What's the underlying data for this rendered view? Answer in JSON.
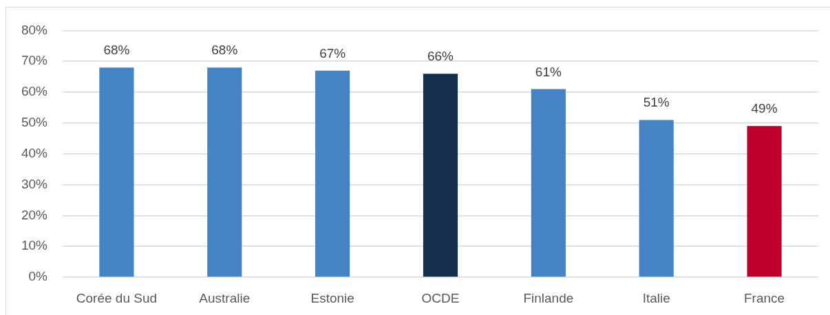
{
  "chart_data": {
    "type": "bar",
    "categories": [
      "Corée du Sud",
      "Australie",
      "Estonie",
      "OCDE",
      "Finlande",
      "Italie",
      "France"
    ],
    "values": [
      68,
      68,
      67,
      66,
      61,
      51,
      49
    ],
    "colors": [
      "#4484c4",
      "#4484c4",
      "#4484c4",
      "#14304d",
      "#4484c4",
      "#4484c4",
      "#c0002a"
    ],
    "value_labels": [
      "68%",
      "68%",
      "67%",
      "66%",
      "61%",
      "51%",
      "49%"
    ],
    "ylim": [
      0,
      80
    ],
    "yticks": [
      {
        "value": 0,
        "label": "0%"
      },
      {
        "value": 10,
        "label": "10%"
      },
      {
        "value": 20,
        "label": "20%"
      },
      {
        "value": 30,
        "label": "30%"
      },
      {
        "value": 40,
        "label": "40%"
      },
      {
        "value": 50,
        "label": "50%"
      },
      {
        "value": 60,
        "label": "60%"
      },
      {
        "value": 70,
        "label": "70%"
      },
      {
        "value": 80,
        "label": "80%"
      }
    ],
    "grid": "y",
    "legend": false
  }
}
